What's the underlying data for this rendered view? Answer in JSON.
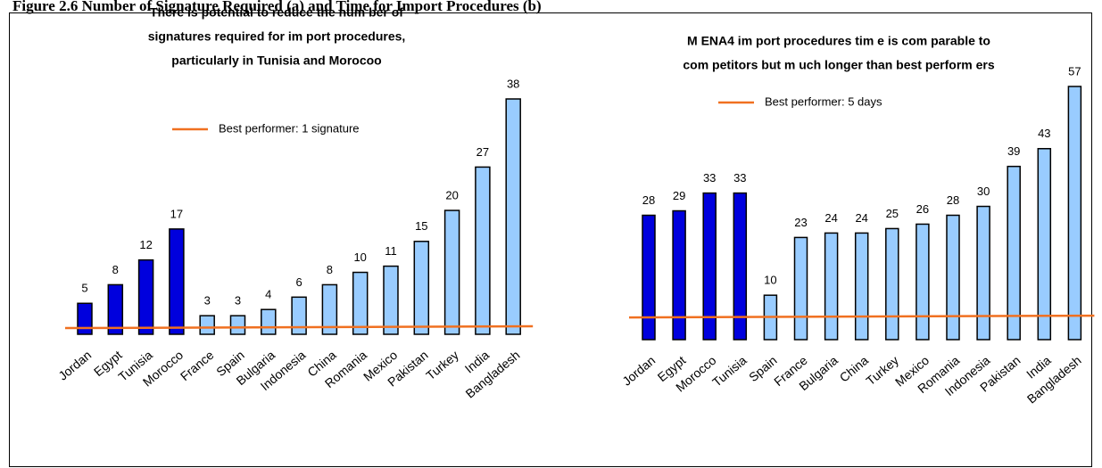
{
  "figure_title": "Figure 2.6 Number of Signature Required (a) and Time for Import Procedures (b)",
  "chart_data": [
    {
      "type": "bar",
      "title": [
        "There is potential to reduce the num ber of",
        "signatures required for im port procedures,",
        "particularly  in Tunisia and Morocoo"
      ],
      "categories": [
        "Jordan",
        "Egypt",
        "Tunisia",
        "Morocco",
        "France",
        "Spain",
        "Bulgaria",
        "Indonesia",
        "China",
        "Romania",
        "Mexico",
        "Pakistan",
        "Turkey",
        "India",
        "Bangladesh"
      ],
      "values": [
        5,
        8,
        12,
        17,
        3,
        3,
        4,
        6,
        8,
        10,
        11,
        15,
        20,
        27,
        38
      ],
      "colors": [
        "#0000dd",
        "#0000dd",
        "#0000dd",
        "#0000dd",
        "#99ccff",
        "#99ccff",
        "#99ccff",
        "#99ccff",
        "#99ccff",
        "#99ccff",
        "#99ccff",
        "#99ccff",
        "#99ccff",
        "#99ccff",
        "#99ccff"
      ],
      "reference": {
        "label": "Best performer: 1 signature",
        "value": 1,
        "color": "#f07020"
      }
    },
    {
      "type": "bar",
      "title": [
        "M ENA4 im port procedures tim e is com parable to",
        "com petitors but m uch longer than best perform ers"
      ],
      "categories": [
        "Jordan",
        "Egypt",
        "Morocco",
        "Tunisia",
        "Spain",
        "France",
        "Bulgaria",
        "China",
        "Turkey",
        "Mexico",
        "Romania",
        "Indonesia",
        "Pakistan",
        "India",
        "Bangladesh"
      ],
      "values": [
        28,
        29,
        33,
        33,
        10,
        23,
        24,
        24,
        25,
        26,
        28,
        30,
        39,
        43,
        57
      ],
      "colors": [
        "#0000dd",
        "#0000dd",
        "#0000dd",
        "#0000dd",
        "#99ccff",
        "#99ccff",
        "#99ccff",
        "#99ccff",
        "#99ccff",
        "#99ccff",
        "#99ccff",
        "#99ccff",
        "#99ccff",
        "#99ccff",
        "#99ccff"
      ],
      "reference": {
        "label": "Best performer: 5 days",
        "value": 5,
        "color": "#f07020"
      }
    }
  ]
}
